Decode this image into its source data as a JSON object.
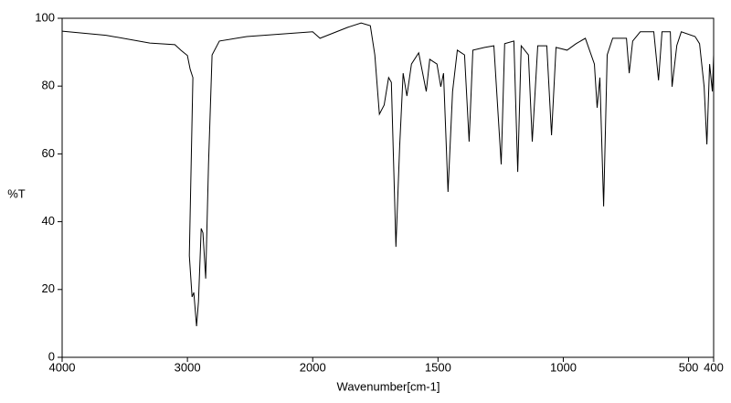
{
  "chart_data": {
    "type": "line",
    "xlabel": "Wavenumber[cm-1]",
    "ylabel": "%T",
    "xlim": [
      4000,
      400
    ],
    "x_scale_change": {
      "at": 2000,
      "factor": 2
    },
    "xticks": [
      4000,
      3000,
      2000,
      1500,
      1000,
      500,
      400
    ],
    "ylim": [
      0,
      100
    ],
    "yticks": [
      0,
      20,
      40,
      60,
      80,
      100
    ],
    "series": [
      {
        "color": "#000000",
        "x": [
          4000,
          3650,
          3300,
          3100,
          3050,
          3000,
          2978,
          2956,
          2985,
          2963,
          2949,
          2927,
          2912,
          2890,
          2876,
          2854,
          2832,
          2803,
          2745,
          2526,
          2000,
          1971,
          1861,
          1807,
          1770,
          1752,
          1734,
          1715,
          1697,
          1686,
          1668,
          1653,
          1639,
          1624,
          1606,
          1577,
          1547,
          1533,
          1504,
          1489,
          1478,
          1460,
          1442,
          1423,
          1394,
          1376,
          1361,
          1314,
          1277,
          1248,
          1234,
          1197,
          1182,
          1168,
          1139,
          1124,
          1102,
          1066,
          1047,
          1029,
          985,
          949,
          912,
          876,
          865,
          854,
          839,
          825,
          803,
          748,
          737,
          723,
          693,
          639,
          620,
          606,
          573,
          566,
          547,
          529,
          474,
          456,
          438,
          427,
          416,
          405,
          400
        ],
        "values": [
          96.2,
          95.0,
          92.7,
          92.2,
          90.5,
          89.0,
          85.0,
          82.5,
          30.0,
          17.8,
          19.1,
          9.2,
          16.4,
          38.0,
          36.7,
          23.2,
          56.9,
          89.2,
          93.3,
          94.6,
          96.0,
          94.1,
          97.3,
          98.6,
          97.8,
          89.2,
          71.7,
          74.4,
          82.5,
          81.1,
          32.6,
          62.3,
          83.8,
          77.1,
          86.5,
          89.8,
          78.4,
          87.9,
          86.5,
          79.8,
          83.8,
          48.8,
          78.4,
          90.6,
          89.2,
          63.6,
          90.6,
          91.4,
          91.9,
          56.9,
          92.5,
          93.3,
          54.7,
          91.9,
          89.2,
          63.6,
          91.9,
          91.9,
          65.5,
          91.4,
          90.6,
          92.5,
          94.1,
          86.5,
          73.6,
          82.5,
          44.5,
          89.2,
          94.1,
          94.1,
          83.8,
          93.3,
          96.0,
          96.0,
          81.7,
          96.0,
          96.0,
          79.8,
          92.0,
          96.0,
          94.6,
          92.5,
          79.8,
          62.8,
          86.5,
          78.4,
          89.2
        ]
      }
    ]
  }
}
